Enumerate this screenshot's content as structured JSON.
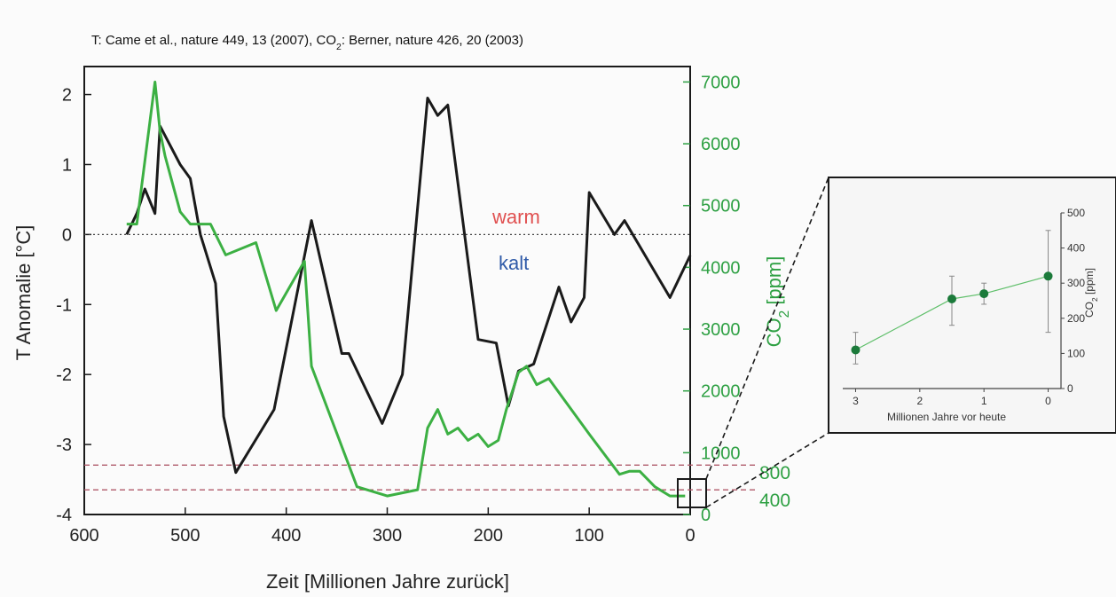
{
  "chart_data": [
    {
      "type": "line",
      "title": "T: Came et al., nature 449, 13 (2007), CO2: Berner, nature 426, 20 (2003)",
      "xlabel": "Zeit [Millionen Jahre zurück]",
      "ylabel": "T Anomalie [°C]",
      "y2label": "CO2 [ppm]",
      "xlim": [
        600,
        0
      ],
      "ylim": [
        -4,
        2.4
      ],
      "y2lim": [
        0,
        7250
      ],
      "x_ticks": [
        "600",
        "500",
        "400",
        "300",
        "200",
        "100",
        "0"
      ],
      "y_ticks": [
        "2",
        "1",
        "0",
        "-1",
        "-2",
        "-3",
        "-4"
      ],
      "y2_ticks": [
        "7000",
        "6000",
        "5000",
        "4000",
        "3000",
        "2000",
        "1000",
        "0"
      ],
      "grid": false,
      "annotations": [
        {
          "text": "warm",
          "color": "#e05050"
        },
        {
          "text": "kalt",
          "color": "#2f5aa8"
        },
        {
          "text": "800",
          "color": "#2ea043"
        },
        {
          "text": "400",
          "color": "#2ea043"
        }
      ],
      "reference_lines": [
        {
          "axis": "y",
          "value": 0,
          "style": "dotted",
          "color": "#444444"
        },
        {
          "axis": "y2",
          "value": 800,
          "style": "dashed",
          "color": "#b05a6a"
        },
        {
          "axis": "y2",
          "value": 400,
          "style": "dashed",
          "color": "#b05a6a"
        }
      ],
      "series": [
        {
          "axis": "left",
          "color": "#1a1a1a",
          "points": [
            [
              558,
              0.0
            ],
            [
              548,
              0.3
            ],
            [
              540,
              0.65
            ],
            [
              530,
              0.3
            ],
            [
              525,
              1.55
            ],
            [
              505,
              1.0
            ],
            [
              495,
              0.8
            ],
            [
              485,
              0.0
            ],
            [
              470,
              -0.7
            ],
            [
              462,
              -2.6
            ],
            [
              450,
              -3.4
            ],
            [
              412,
              -2.5
            ],
            [
              375,
              0.2
            ],
            [
              345,
              -1.7
            ],
            [
              338,
              -1.7
            ],
            [
              305,
              -2.7
            ],
            [
              285,
              -2.0
            ],
            [
              260,
              1.95
            ],
            [
              250,
              1.7
            ],
            [
              240,
              1.85
            ],
            [
              210,
              -1.5
            ],
            [
              192,
              -1.55
            ],
            [
              180,
              -2.45
            ],
            [
              170,
              -1.95
            ],
            [
              155,
              -1.85
            ],
            [
              130,
              -0.75
            ],
            [
              118,
              -1.25
            ],
            [
              105,
              -0.9
            ],
            [
              100,
              0.6
            ],
            [
              75,
              0.0
            ],
            [
              65,
              0.2
            ],
            [
              20,
              -0.9
            ],
            [
              0,
              -0.3
            ]
          ]
        },
        {
          "axis": "right",
          "color": "#3cb043",
          "points": [
            [
              558,
              4700
            ],
            [
              548,
              4700
            ],
            [
              530,
              7000
            ],
            [
              525,
              6200
            ],
            [
              520,
              5800
            ],
            [
              505,
              4900
            ],
            [
              495,
              4700
            ],
            [
              475,
              4700
            ],
            [
              460,
              4200
            ],
            [
              430,
              4400
            ],
            [
              410,
              3300
            ],
            [
              382,
              4100
            ],
            [
              375,
              2400
            ],
            [
              330,
              450
            ],
            [
              300,
              300
            ],
            [
              270,
              400
            ],
            [
              260,
              1400
            ],
            [
              250,
              1700
            ],
            [
              240,
              1300
            ],
            [
              230,
              1400
            ],
            [
              220,
              1200
            ],
            [
              210,
              1300
            ],
            [
              200,
              1100
            ],
            [
              190,
              1200
            ],
            [
              182,
              1700
            ],
            [
              170,
              2300
            ],
            [
              162,
              2400
            ],
            [
              152,
              2100
            ],
            [
              140,
              2200
            ],
            [
              100,
              1300
            ],
            [
              70,
              650
            ],
            [
              60,
              700
            ],
            [
              50,
              700
            ],
            [
              35,
              450
            ],
            [
              20,
              300
            ],
            [
              5,
              300
            ]
          ]
        }
      ]
    },
    {
      "type": "scatter",
      "xlabel": "Millionen Jahre vor heute",
      "ylabel": "CO2 [ppm]",
      "xlim": [
        3.2,
        -0.2
      ],
      "ylim": [
        0,
        500
      ],
      "x_ticks": [
        "3",
        "2",
        "1",
        "0"
      ],
      "y_ticks": [
        "500",
        "400",
        "300",
        "200",
        "100",
        "0"
      ],
      "color": "#1b7a3a",
      "points": [
        {
          "x": 3.0,
          "y": 110,
          "err_low": 70,
          "err_high": 160
        },
        {
          "x": 1.5,
          "y": 255,
          "err_low": 180,
          "err_high": 320
        },
        {
          "x": 1.0,
          "y": 270,
          "err_low": 240,
          "err_high": 300
        },
        {
          "x": 0.0,
          "y": 320,
          "err_low": 160,
          "err_high": 450
        }
      ]
    }
  ]
}
